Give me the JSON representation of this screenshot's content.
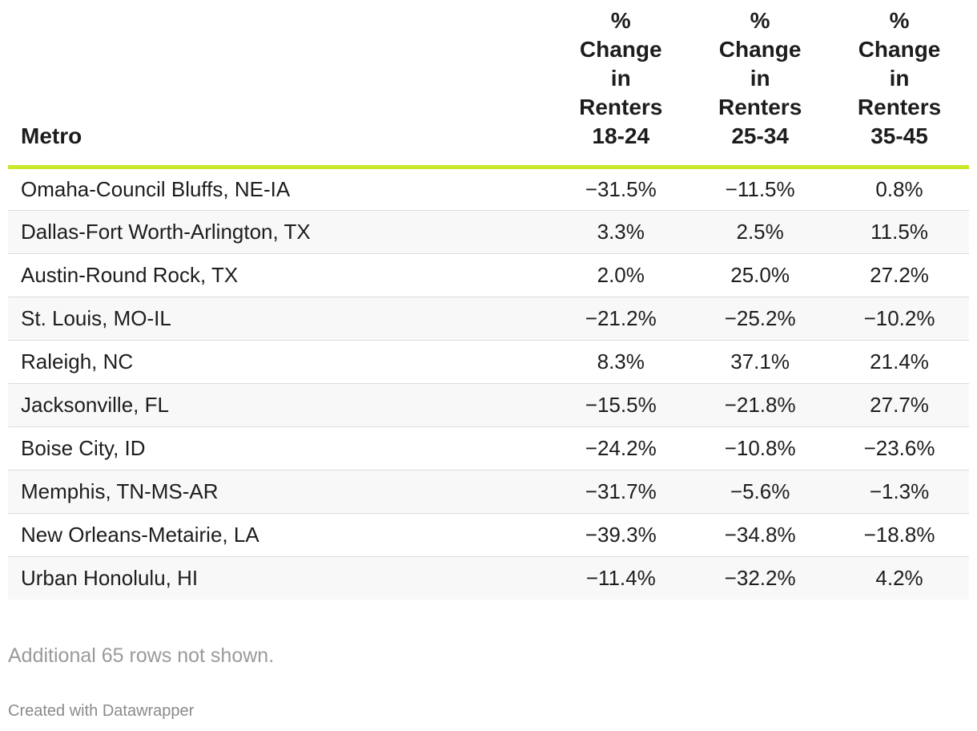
{
  "chart_data": {
    "type": "table",
    "columns": [
      "Metro",
      "% Change in Renters 18-24",
      "% Change in Renters 25-34",
      "% Change in Renters 35-45"
    ],
    "header_lines": [
      [
        "Metro"
      ],
      [
        "%",
        "Change",
        "in",
        "Renters",
        "18-24"
      ],
      [
        "%",
        "Change",
        "in",
        "Renters",
        "25-34"
      ],
      [
        "%",
        "Change",
        "in",
        "Renters",
        "35-45"
      ]
    ],
    "rows": [
      [
        "Omaha-Council Bluffs, NE-IA",
        "−31.5%",
        "−11.5%",
        "0.8%"
      ],
      [
        "Dallas-Fort Worth-Arlington, TX",
        "3.3%",
        "2.5%",
        "11.5%"
      ],
      [
        "Austin-Round Rock, TX",
        "2.0%",
        "25.0%",
        "27.2%"
      ],
      [
        "St. Louis, MO-IL",
        "−21.2%",
        "−25.2%",
        "−10.2%"
      ],
      [
        "Raleigh, NC",
        "8.3%",
        "37.1%",
        "21.4%"
      ],
      [
        "Jacksonville, FL",
        "−15.5%",
        "−21.8%",
        "27.7%"
      ],
      [
        "Boise City, ID",
        "−24.2%",
        "−10.8%",
        "−23.6%"
      ],
      [
        "Memphis, TN-MS-AR",
        "−31.7%",
        "−5.6%",
        "−1.3%"
      ],
      [
        "New Orleans-Metairie, LA",
        "−39.3%",
        "−34.8%",
        "−18.8%"
      ],
      [
        "Urban Honolulu, HI",
        "−11.4%",
        "−32.2%",
        "4.2%"
      ]
    ],
    "notes": "Additional 65 rows not shown.",
    "footer": "Created with Datawrapper"
  },
  "colors": {
    "header_rule": "#c9e728",
    "row_stripe": "#f8f8f8",
    "notes_text": "#9a9a9a"
  }
}
